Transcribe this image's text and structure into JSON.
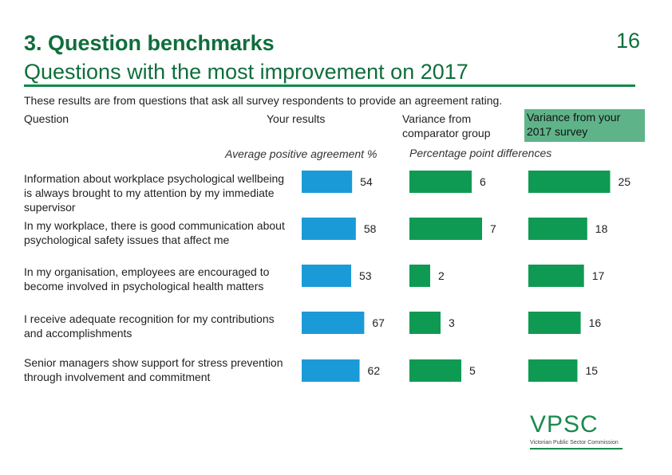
{
  "page": {
    "title_line1": "3. Question benchmarks",
    "title_line2": "Questions with the most improvement on 2017",
    "page_number": "16",
    "intro": "These results are from questions that ask all survey respondents to provide an agreement rating.",
    "col_question": "Question",
    "col_your_results": "Your results",
    "col_comparator": "Variance from comparator group",
    "col_2017": "Variance from your 2017 survey",
    "sub_avg": "Average positive agreement %",
    "sub_pp": "Percentage point differences"
  },
  "logo": {
    "mark": "VPSC",
    "text": "Victorian Public Sector Commission"
  },
  "colors": {
    "your_results": "#1a9bd7",
    "variance": "#0f9a54",
    "accent": "#0f8a4a",
    "header_fill": "#5fb389"
  },
  "chart_data": {
    "type": "bar",
    "orientation": "horizontal",
    "categories": [
      "Information about workplace psychological wellbeing is always brought to my attention by my immediate supervisor",
      "In my workplace, there is good communication about psychological safety issues that affect me",
      "In my organisation, employees are encouraged to become involved in psychological health matters",
      "I receive adequate recognition for my contributions and accomplishments",
      "Senior managers show support for stress prevention through involvement and commitment"
    ],
    "series": [
      {
        "name": "Your results",
        "unit": "Average positive agreement %",
        "values": [
          54,
          58,
          53,
          67,
          62
        ]
      },
      {
        "name": "Variance from comparator group",
        "unit": "Percentage point differences",
        "values": [
          6,
          7,
          2,
          3,
          5
        ]
      },
      {
        "name": "Variance from your 2017 survey",
        "unit": "Percentage point differences",
        "values": [
          25,
          18,
          17,
          16,
          15
        ]
      }
    ]
  }
}
